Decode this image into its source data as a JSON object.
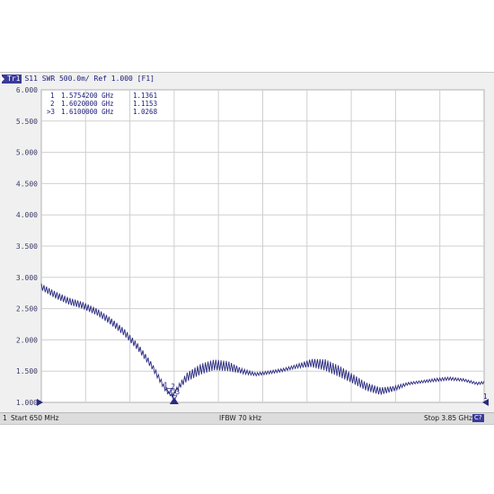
{
  "header": {
    "trace_badge": "Tr1",
    "trace_info": "S11  SWR  500.0m/  Ref 1.000  [F1]"
  },
  "markers": [
    {
      "id": "1",
      "freq": "1.5754200 GHz",
      "value": "1.1361",
      "active": false
    },
    {
      "id": "2",
      "freq": "1.6020000 GHz",
      "value": "1.1153",
      "active": false
    },
    {
      "id": "3",
      "freq": "1.6100000 GHz",
      "value": "1.0268",
      "active": true
    }
  ],
  "status": {
    "channel": "1",
    "start": "Start 650 MHz",
    "ifbw": "IFBW 70 kHz",
    "stop": "Stop 3.85 GHz",
    "cal": "C?"
  },
  "colors": {
    "trace": "#2b2b80",
    "grid": "#cfcfcf",
    "accent": "#3a3a9a"
  },
  "chart_data": {
    "type": "line",
    "title": "",
    "xlabel": "",
    "ylabel": "",
    "x_unit": "GHz",
    "xlim": [
      0.65,
      3.85
    ],
    "ylim": [
      1.0,
      6.0
    ],
    "ytick_labels": [
      "6.000",
      "5.500",
      "5.000",
      "4.500",
      "4.000",
      "3.500",
      "3.000",
      "2.500",
      "2.000",
      "1.500",
      "1.000"
    ],
    "grid": true,
    "series": [
      {
        "x": [
          0.65,
          0.75,
          0.85,
          0.95,
          1.05,
          1.15,
          1.25,
          1.35,
          1.45,
          1.55,
          1.575,
          1.6,
          1.625,
          1.7,
          1.8,
          1.9,
          2.0,
          2.1,
          2.2,
          2.3,
          2.4,
          2.5,
          2.6,
          2.7,
          2.8,
          2.9,
          3.0,
          3.1,
          3.2,
          3.3,
          3.4,
          3.5,
          3.6,
          3.7,
          3.8,
          3.85
        ],
        "y": [
          2.85,
          2.72,
          2.62,
          2.55,
          2.45,
          2.3,
          2.12,
          1.88,
          1.58,
          1.2,
          1.14,
          1.1,
          1.2,
          1.4,
          1.53,
          1.6,
          1.58,
          1.5,
          1.45,
          1.48,
          1.52,
          1.58,
          1.63,
          1.6,
          1.5,
          1.38,
          1.25,
          1.18,
          1.22,
          1.3,
          1.33,
          1.36,
          1.38,
          1.36,
          1.3,
          1.32
        ],
        "ripple": [
          0.1,
          0.11,
          0.11,
          0.11,
          0.11,
          0.11,
          0.11,
          0.11,
          0.1,
          0.07,
          0.05,
          0.04,
          0.06,
          0.14,
          0.17,
          0.17,
          0.16,
          0.08,
          0.05,
          0.05,
          0.05,
          0.06,
          0.13,
          0.18,
          0.18,
          0.15,
          0.13,
          0.12,
          0.08,
          0.04,
          0.04,
          0.05,
          0.05,
          0.04,
          0.04,
          0.04
        ]
      }
    ],
    "marker_points": [
      {
        "id": "1",
        "x": 1.5754,
        "y": 1.1361
      },
      {
        "id": "2",
        "x": 1.602,
        "y": 1.1153
      },
      {
        "id": "3",
        "x": 1.61,
        "y": 1.0268
      }
    ],
    "ref_level": 1.0
  }
}
